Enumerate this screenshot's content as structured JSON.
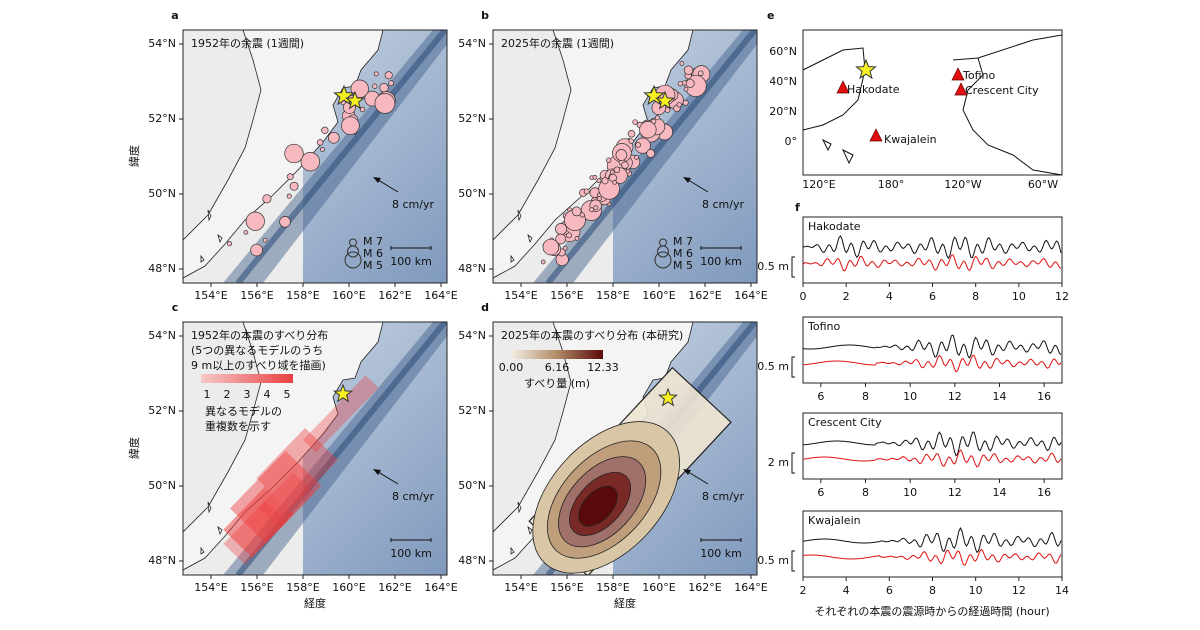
{
  "map_axes": {
    "lat_ticks": [
      "54°N",
      "52°N",
      "50°N",
      "48°N"
    ],
    "lon_ticks": [
      "154°E",
      "156°E",
      "158°E",
      "160°E",
      "162°E",
      "164°E"
    ],
    "xlabel": "経度",
    "ylabel": "緯度",
    "velocity": "8 cm/yr",
    "scale": "100 km"
  },
  "panels": {
    "a": {
      "label": "a",
      "title": [
        "1952年の余震 (1週間)"
      ],
      "legend": [
        "M 7",
        "M 6",
        "M 5"
      ]
    },
    "b": {
      "label": "b",
      "title": [
        "2025年の余震 (1週間)"
      ],
      "legend": [
        "M 7",
        "M 6",
        "M 5"
      ]
    },
    "c": {
      "label": "c",
      "title": [
        "1952年の本震のすべり分布",
        "(5つの異なるモデルのうち",
        "9 m以上のすべり域を描画)"
      ],
      "colorbar_ticks": [
        "1",
        "2",
        "3",
        "4",
        "5"
      ],
      "colorbar_label": [
        "異なるモデルの",
        "重複数を示す"
      ]
    },
    "d": {
      "label": "d",
      "title": [
        "2025年の本震のすべり分布 (本研究)"
      ],
      "colorbar_ticks": [
        "0.00",
        "6.16",
        "12.33"
      ],
      "colorbar_label": [
        "すべり量 (m)"
      ]
    },
    "e": {
      "label": "e",
      "lat_ticks": [
        "60°N",
        "40°N",
        "20°N",
        "0°"
      ],
      "lon_ticks": [
        "120°E",
        "180°",
        "120°W",
        "60°W"
      ],
      "stations": [
        "Hakodate",
        "Tofino",
        "Crescent City",
        "Kwajalein"
      ]
    },
    "f": {
      "label": "f",
      "xlabel": "それぞれの本震の震源時からの経過時間 (hour)",
      "traces": [
        {
          "name": "Hakodate",
          "scale": "0.5 m",
          "xticks": [
            "0",
            "2",
            "4",
            "6",
            "8",
            "10",
            "12"
          ]
        },
        {
          "name": "Tofino",
          "scale": "0.5 m",
          "xticks": [
            "6",
            "8",
            "10",
            "12",
            "14",
            "16"
          ]
        },
        {
          "name": "Crescent City",
          "scale": "2 m",
          "xticks": [
            "6",
            "8",
            "10",
            "12",
            "14",
            "16"
          ]
        },
        {
          "name": "Kwajalein",
          "scale": "0.5 m",
          "xticks": [
            "2",
            "4",
            "6",
            "8",
            "10",
            "12",
            "14"
          ]
        }
      ]
    }
  }
}
